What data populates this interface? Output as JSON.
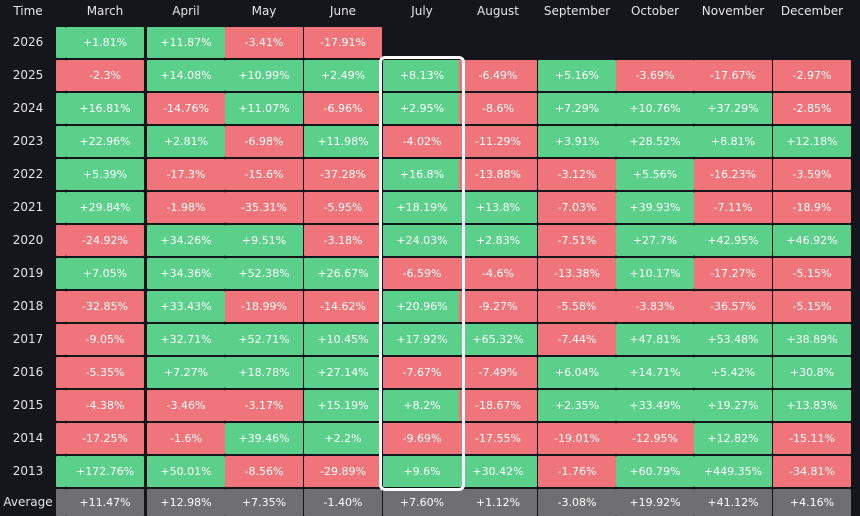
{
  "chart_data": {
    "type": "heatmap",
    "corner_label": "Time",
    "columns": [
      "March",
      "April",
      "May",
      "June",
      "July",
      "August",
      "September",
      "October",
      "November",
      "December"
    ],
    "highlighted_column": "July",
    "rows": [
      {
        "label": "2026",
        "values": [
          "+1.81%",
          "+11.87%",
          "-3.41%",
          "-17.91%",
          null,
          null,
          null,
          null,
          null,
          null
        ]
      },
      {
        "label": "2025",
        "values": [
          "-2.3%",
          "+14.08%",
          "+10.99%",
          "+2.49%",
          "+8.13%",
          "-6.49%",
          "+5.16%",
          "-3.69%",
          "-17.67%",
          "-2.97%"
        ]
      },
      {
        "label": "2024",
        "values": [
          "+16.81%",
          "-14.76%",
          "+11.07%",
          "-6.96%",
          "+2.95%",
          "-8.6%",
          "+7.29%",
          "+10.76%",
          "+37.29%",
          "-2.85%"
        ]
      },
      {
        "label": "2023",
        "values": [
          "+22.96%",
          "+2.81%",
          "-6.98%",
          "+11.98%",
          "-4.02%",
          "-11.29%",
          "+3.91%",
          "+28.52%",
          "+8.81%",
          "+12.18%"
        ]
      },
      {
        "label": "2022",
        "values": [
          "+5.39%",
          "-17.3%",
          "-15.6%",
          "-37.28%",
          "+16.8%",
          "-13.88%",
          "-3.12%",
          "+5.56%",
          "-16.23%",
          "-3.59%"
        ]
      },
      {
        "label": "2021",
        "values": [
          "+29.84%",
          "-1.98%",
          "-35.31%",
          "-5.95%",
          "+18.19%",
          "+13.8%",
          "-7.03%",
          "+39.93%",
          "-7.11%",
          "-18.9%"
        ]
      },
      {
        "label": "2020",
        "values": [
          "-24.92%",
          "+34.26%",
          "+9.51%",
          "-3.18%",
          "+24.03%",
          "+2.83%",
          "-7.51%",
          "+27.7%",
          "+42.95%",
          "+46.92%"
        ]
      },
      {
        "label": "2019",
        "values": [
          "+7.05%",
          "+34.36%",
          "+52.38%",
          "+26.67%",
          "-6.59%",
          "-4.6%",
          "-13.38%",
          "+10.17%",
          "-17.27%",
          "-5.15%"
        ]
      },
      {
        "label": "2018",
        "values": [
          "-32.85%",
          "+33.43%",
          "-18.99%",
          "-14.62%",
          "+20.96%",
          "-9.27%",
          "-5.58%",
          "-3.83%",
          "-36.57%",
          "-5.15%"
        ]
      },
      {
        "label": "2017",
        "values": [
          "-9.05%",
          "+32.71%",
          "+52.71%",
          "+10.45%",
          "+17.92%",
          "+65.32%",
          "-7.44%",
          "+47.81%",
          "+53.48%",
          "+38.89%"
        ]
      },
      {
        "label": "2016",
        "values": [
          "-5.35%",
          "+7.27%",
          "+18.78%",
          "+27.14%",
          "-7.67%",
          "-7.49%",
          "+6.04%",
          "+14.71%",
          "+5.42%",
          "+30.8%"
        ]
      },
      {
        "label": "2015",
        "values": [
          "-4.38%",
          "-3.46%",
          "-3.17%",
          "+15.19%",
          "+8.2%",
          "-18.67%",
          "+2.35%",
          "+33.49%",
          "+19.27%",
          "+13.83%"
        ]
      },
      {
        "label": "2014",
        "values": [
          "-17.25%",
          "-1.6%",
          "+39.46%",
          "+2.2%",
          "-9.69%",
          "-17.55%",
          "-19.01%",
          "-12.95%",
          "+12.82%",
          "-15.11%"
        ]
      },
      {
        "label": "2013",
        "values": [
          "+172.76%",
          "+50.01%",
          "-8.56%",
          "-29.89%",
          "+9.6%",
          "+30.42%",
          "-1.76%",
          "+60.79%",
          "+449.35%",
          "-34.81%"
        ]
      }
    ],
    "average": {
      "label": "Average",
      "values": [
        "+11.47%",
        "+12.98%",
        "+7.35%",
        "-1.40%",
        "+7.60%",
        "+1.12%",
        "-3.08%",
        "+19.92%",
        "+41.12%",
        "+4.16%"
      ]
    },
    "colors": {
      "positive": "#5bd08b",
      "negative": "#f0757a",
      "average": "#6f6f71",
      "background": "#15161b",
      "highlight": "#ffffff"
    }
  }
}
